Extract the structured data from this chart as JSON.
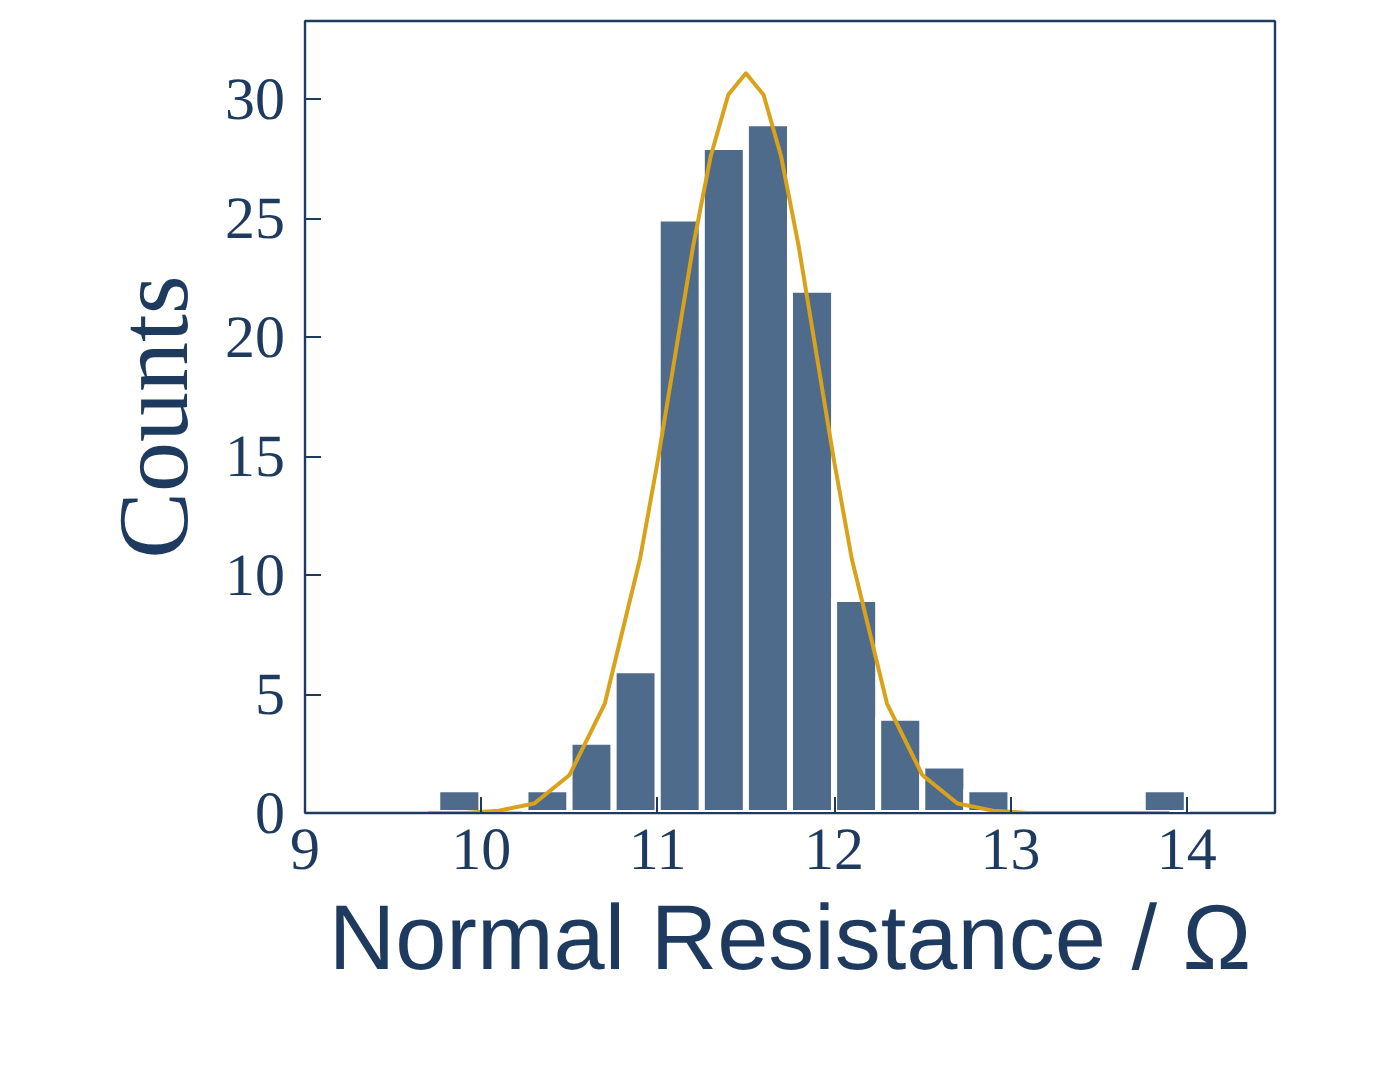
{
  "chart_data": {
    "type": "histogram",
    "xlabel": "Normal Resistance / Ω",
    "ylabel": "Counts",
    "bins": [
      9.75,
      10.0,
      10.25,
      10.5,
      10.75,
      11.0,
      11.25,
      11.5,
      11.75,
      12.0,
      12.25,
      12.5,
      12.75,
      13.0,
      13.25,
      13.5,
      13.75,
      14.0
    ],
    "values": [
      1,
      0,
      1,
      3,
      6,
      25,
      28,
      29,
      22,
      9,
      4,
      2,
      1,
      0,
      0,
      0,
      1
    ],
    "color": "#4f6b8b",
    "series": [
      {
        "type": "line",
        "color": "#d9a21b",
        "x": [
          9.7,
          9.9,
          10.1,
          10.3,
          10.5,
          10.7,
          10.9,
          11.0,
          11.1,
          11.2,
          11.3,
          11.4,
          11.5,
          11.6,
          11.7,
          11.8,
          11.9,
          12.0,
          12.1,
          12.3,
          12.5,
          12.7,
          12.9,
          13.1,
          13.3,
          13.9
        ],
        "values": [
          0.0,
          0.0,
          0.1,
          0.4,
          1.6,
          4.6,
          10.7,
          14.8,
          19.3,
          23.8,
          27.6,
          30.2,
          31.1,
          30.2,
          27.6,
          23.8,
          19.3,
          14.8,
          10.7,
          4.6,
          1.6,
          0.4,
          0.1,
          0.0,
          0.0,
          0.0
        ]
      }
    ],
    "xlim": [
      9,
      14.5
    ],
    "ylim": [
      0,
      33.3
    ],
    "xticks": [
      9,
      10,
      11,
      12,
      13,
      14
    ],
    "yticks": [
      0,
      5,
      10,
      15,
      20,
      25,
      30
    ],
    "grid": false
  }
}
